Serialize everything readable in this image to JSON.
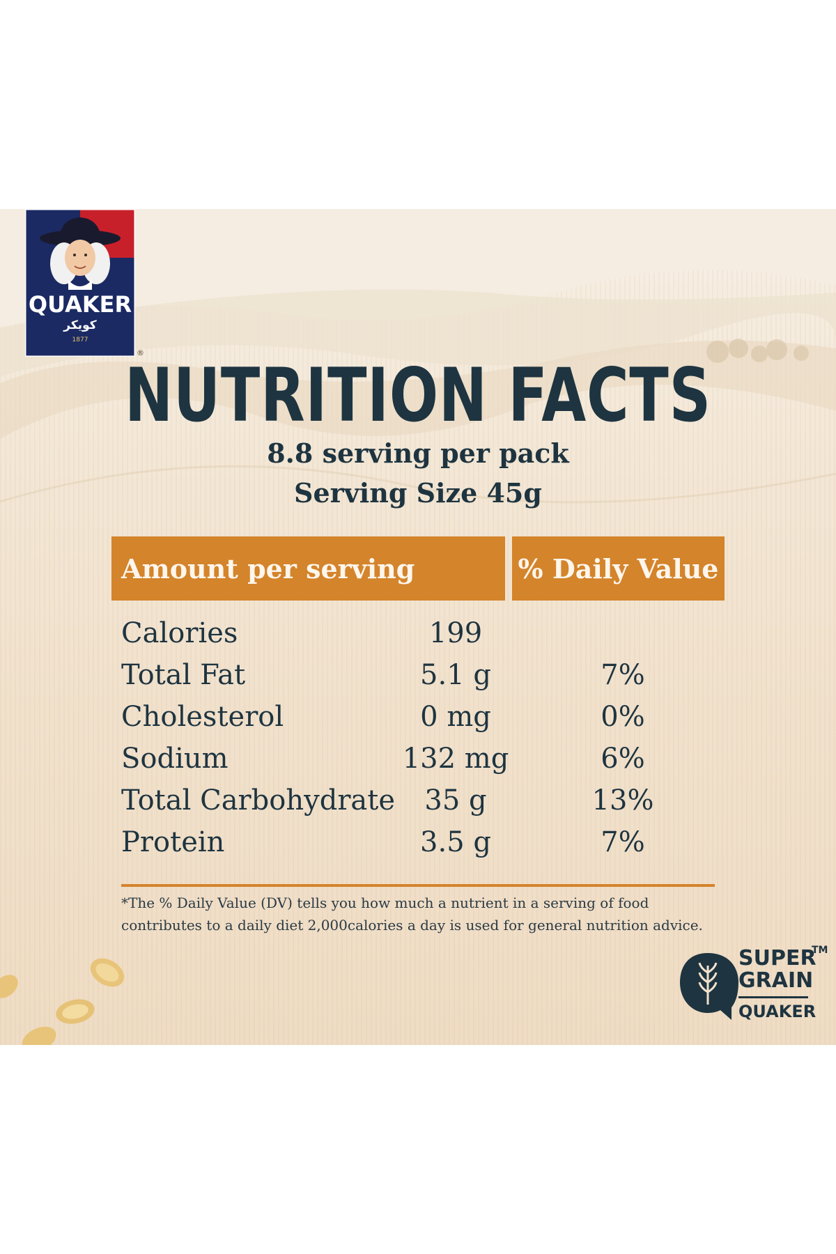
{
  "brand": {
    "name": "QUAKER",
    "arabic_name": "كويكر",
    "year": "1877",
    "registered_mark": "®"
  },
  "heading": {
    "title": "NUTRITION FACTS",
    "servings": "8.8 serving per pack",
    "serving_size": "Serving Size 45g"
  },
  "table": {
    "header_amount": "Amount per serving",
    "header_dv": "% Daily Value",
    "rows": [
      {
        "name": "Calories",
        "amount": "199",
        "dv": ""
      },
      {
        "name": "Total Fat",
        "amount": "5.1 g",
        "dv": "7%"
      },
      {
        "name": "Cholesterol",
        "amount": "0 mg",
        "dv": "0%"
      },
      {
        "name": "Sodium",
        "amount": "132 mg",
        "dv": "6%"
      },
      {
        "name": "Total Carbohydrate",
        "amount": "35 g",
        "dv": "13%"
      },
      {
        "name": "Protein",
        "amount": "3.5 g",
        "dv": "7%"
      }
    ]
  },
  "footnote": {
    "line1": "*The % Daily Value (DV) tells you how much a nutrient in a serving of food",
    "line2": "contributes to a daily diet 2,000calories a day is used for general nutrition advice."
  },
  "super_grain": {
    "line1": "SUPER",
    "tm": "TM",
    "line2": "GRAIN",
    "line3": "QUAKER"
  },
  "colors": {
    "navy": "#1e3440",
    "orange": "#d4842b",
    "logo_red": "#c8202a",
    "logo_blue": "#1b2a63"
  }
}
